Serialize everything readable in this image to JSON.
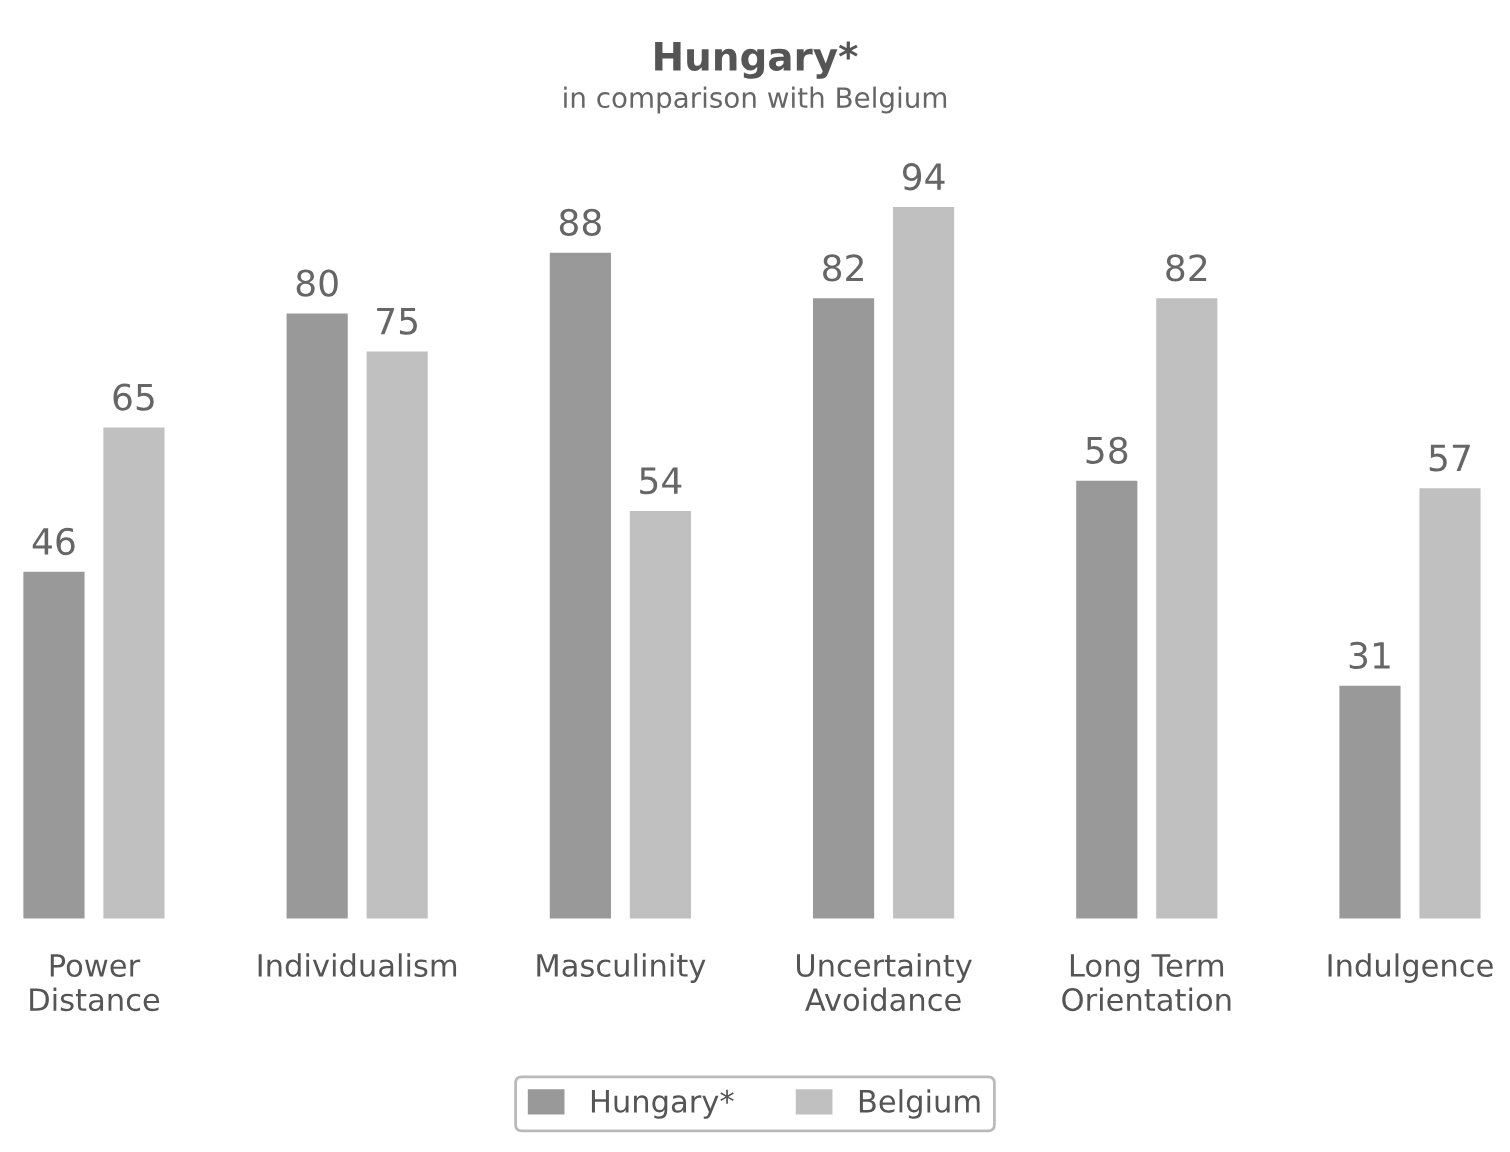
{
  "chart_data": {
    "type": "bar",
    "title": "Hungary*",
    "subtitle": "in comparison with Belgium",
    "categories": [
      "Power\nDistance",
      "Individualism",
      "Masculinity",
      "Uncertainty\nAvoidance",
      "Long Term\nOrientation",
      "Indulgence"
    ],
    "series": [
      {
        "name": "Hungary*",
        "color": "#999999",
        "values": [
          46,
          80,
          88,
          82,
          58,
          31
        ]
      },
      {
        "name": "Belgium",
        "color": "#c0c0c0",
        "values": [
          65,
          75,
          54,
          94,
          82,
          57
        ]
      }
    ],
    "data_labels": true,
    "legend": "bottom",
    "grid": false
  }
}
